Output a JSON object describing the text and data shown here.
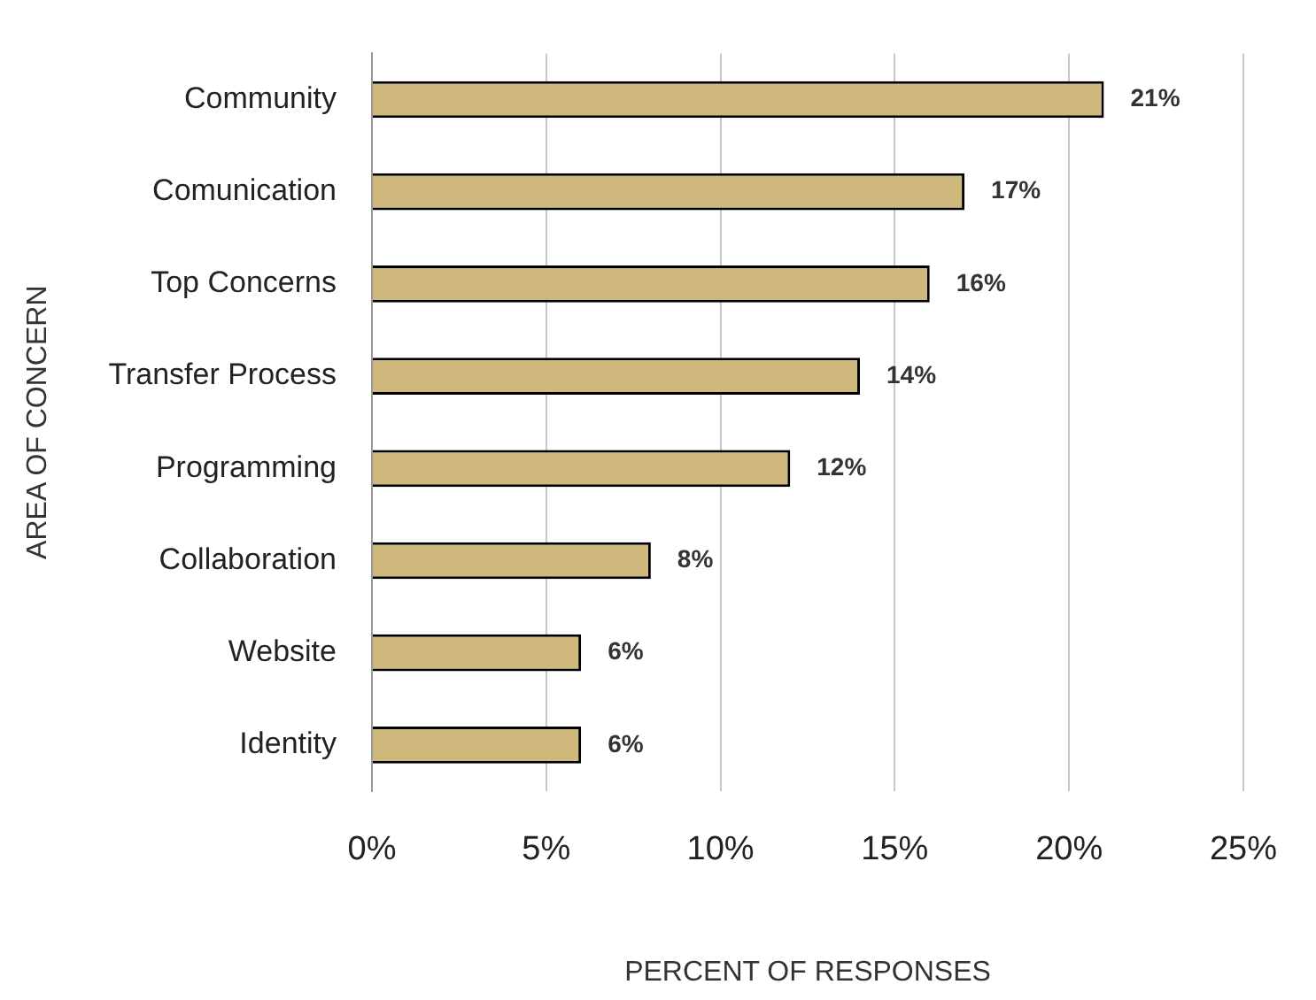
{
  "chart_data": {
    "type": "bar",
    "orientation": "horizontal",
    "xlabel": "PERCENT OF RESPONSES",
    "ylabel": "AREA OF CONCERN",
    "categories": [
      "Community",
      "Comunication",
      "Top Concerns",
      "Transfer Process",
      "Programming",
      "Collaboration",
      "Website",
      "Identity"
    ],
    "values": [
      21,
      17,
      16,
      14,
      12,
      8,
      6,
      6
    ],
    "value_labels": [
      "21%",
      "17%",
      "16%",
      "14%",
      "12%",
      "8%",
      "6%",
      "6%"
    ],
    "color": "#cfb87c",
    "xlim": [
      0,
      25
    ],
    "xticks": [
      {
        "value": 0,
        "label": "0%"
      },
      {
        "value": 5,
        "label": "5%"
      },
      {
        "value": 10,
        "label": "10%"
      },
      {
        "value": 15,
        "label": "15%"
      },
      {
        "value": 20,
        "label": "20%"
      },
      {
        "value": 25,
        "label": "25%"
      }
    ],
    "grid": "x",
    "legend": false
  }
}
